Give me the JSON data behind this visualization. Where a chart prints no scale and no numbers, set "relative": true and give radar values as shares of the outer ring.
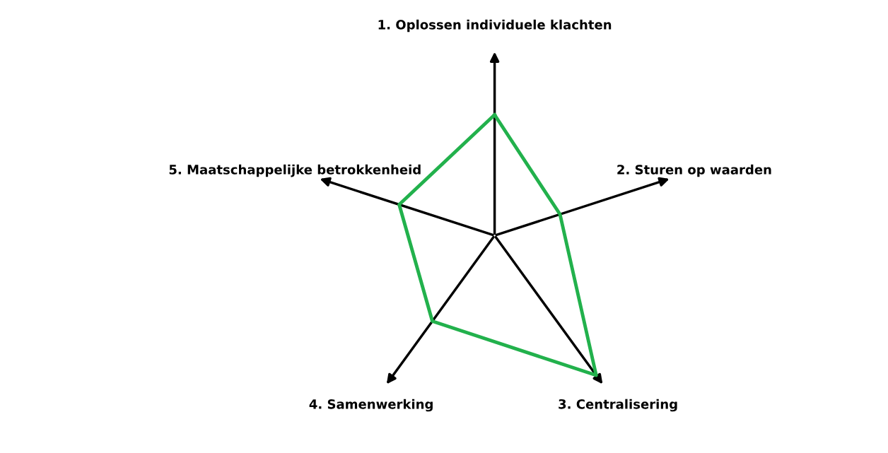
{
  "chart_data": {
    "type": "radar",
    "relative": true,
    "categories": [
      "1. Oplossen individuele klachten",
      "2. Sturen op waarden",
      "3. Centralisering",
      "4. Samenwerking",
      "5. Maatschappelijke betrokkenheid"
    ],
    "series": [
      {
        "color": "#22b14c",
        "values": [
          0.65,
          0.37,
          0.93,
          0.57,
          0.54
        ]
      }
    ],
    "marker": "none",
    "line_style": "solid"
  }
}
